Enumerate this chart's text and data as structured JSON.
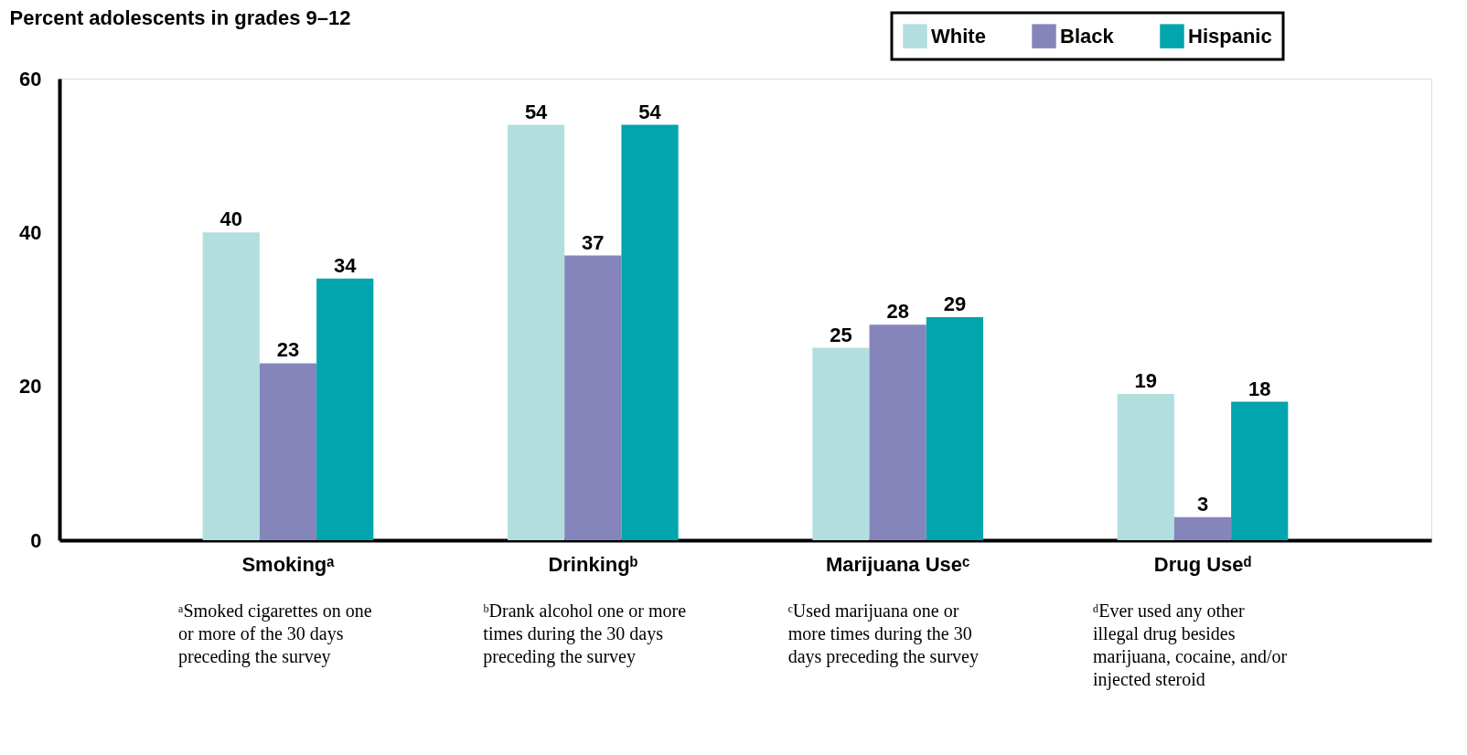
{
  "chart_data": {
    "type": "bar",
    "ylabel": "Percent adolescents in grades 9–12",
    "categories": [
      "Smokingᵃ",
      "Drinkingᵇ",
      "Marijuana Useᶜ",
      "Drug Useᵈ"
    ],
    "series": [
      {
        "name": "White",
        "color": "#b3dede",
        "values": [
          40,
          54,
          25,
          19
        ]
      },
      {
        "name": "Black",
        "color": "#8585bc",
        "values": [
          23,
          37,
          28,
          3
        ]
      },
      {
        "name": "Hispanic",
        "color": "#00a5ad",
        "values": [
          34,
          54,
          29,
          18
        ]
      }
    ],
    "ylim": [
      0,
      60
    ],
    "yticks": [
      0,
      20,
      40,
      60
    ],
    "grid": false,
    "legend": "top right",
    "data_labels": true,
    "annotations": [
      "ᵃSmoked cigarettes on one or more of the 30 days preceding the survey",
      "ᵇDrank alcohol one or more times during the 30 days preceding the survey",
      "ᶜUsed marijuana one or more times during the 30 days preceding the survey",
      "ᵈEver used any other illegal drug besides marijuana, cocaine, and/or injected steroid"
    ]
  }
}
